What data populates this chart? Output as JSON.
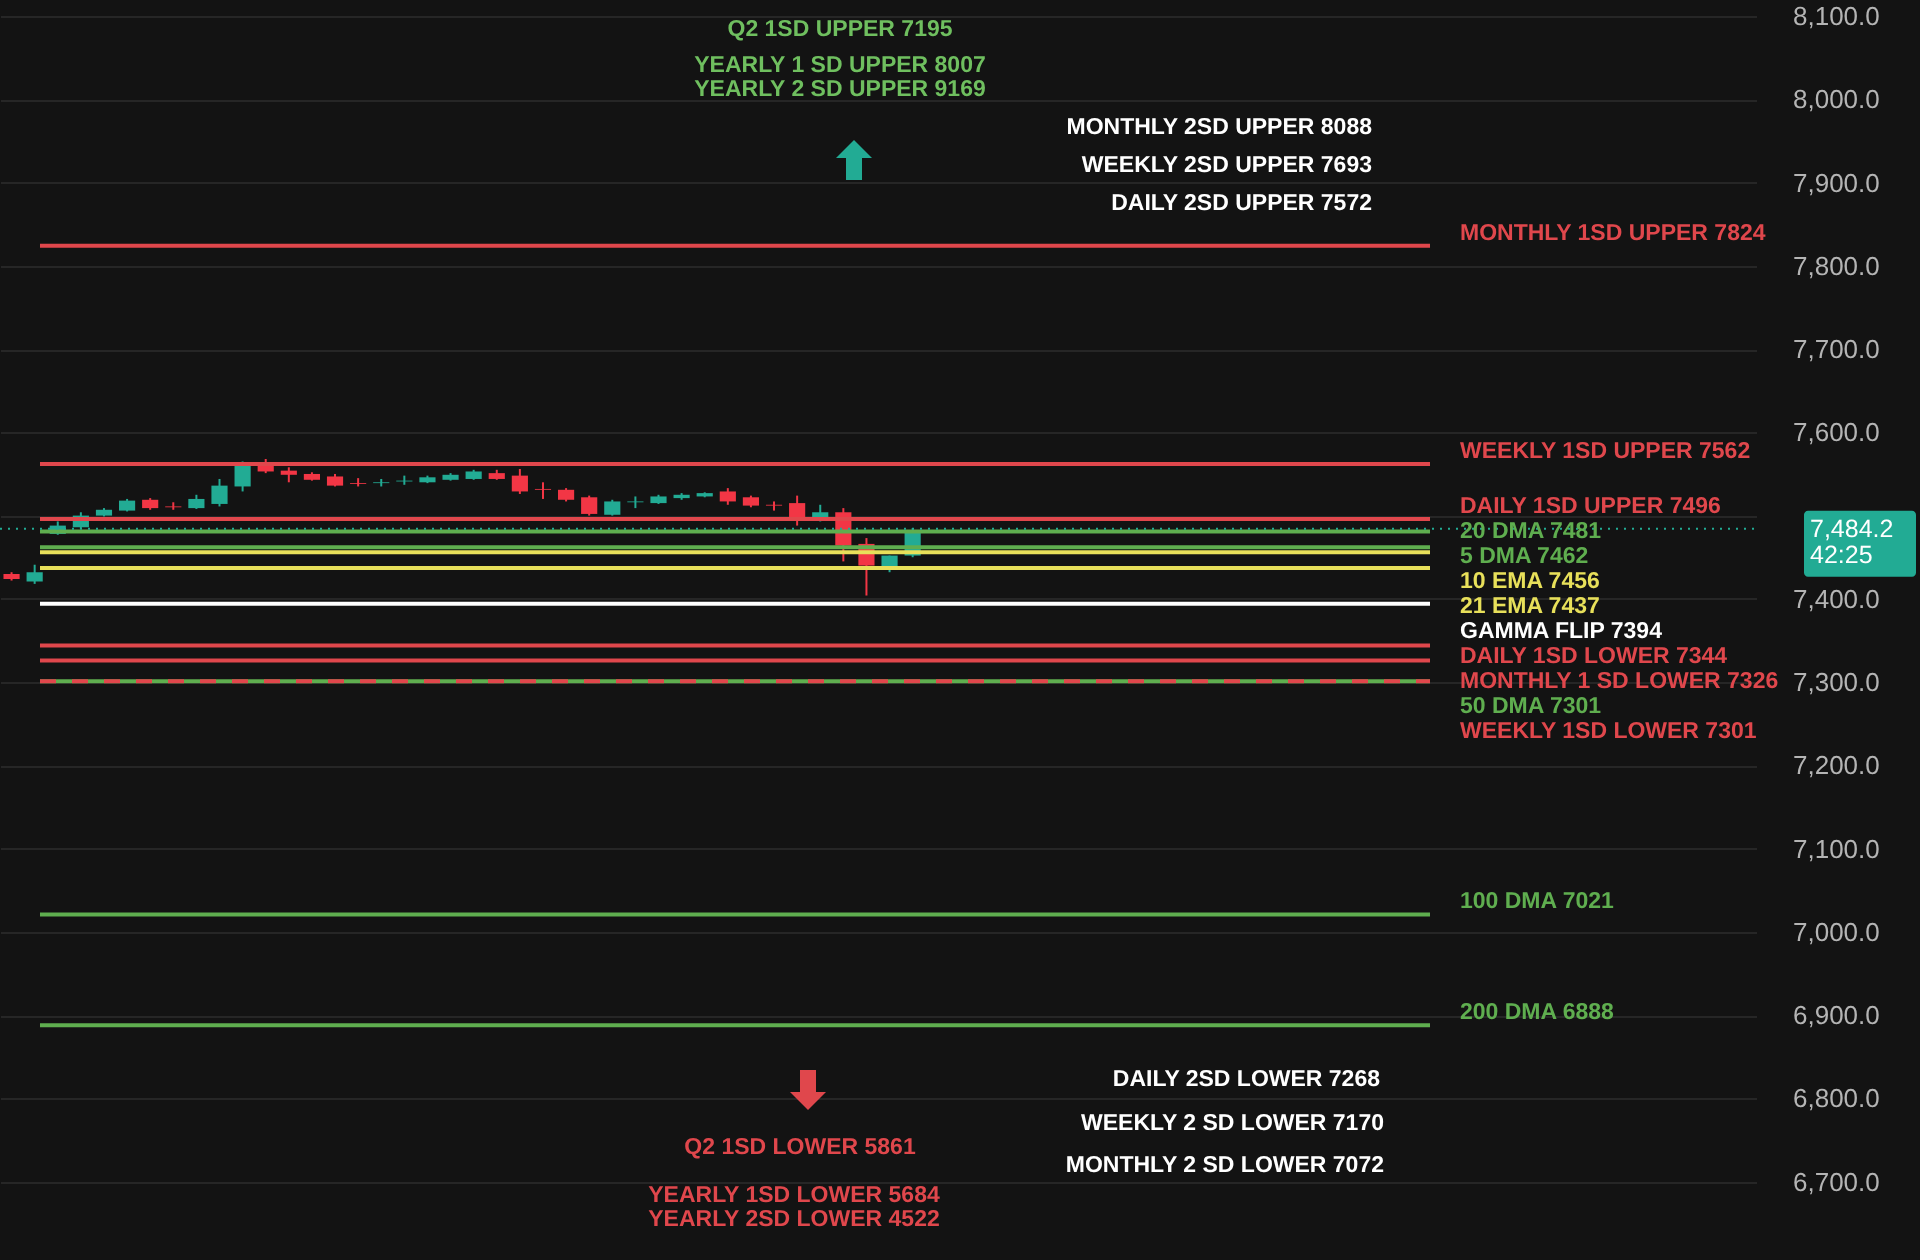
{
  "chart_data": {
    "type": "candlestick",
    "categories": [
      null,
      null,
      null,
      null,
      null,
      null,
      null,
      null,
      null,
      null,
      null,
      null,
      null,
      null,
      null,
      null,
      null,
      null,
      null,
      null,
      null,
      null,
      null,
      null,
      null,
      null,
      null,
      null,
      null,
      null,
      null,
      null,
      null,
      null,
      null,
      null,
      null,
      null,
      null,
      null,
      null,
      null,
      null,
      null,
      null,
      null,
      null,
      null,
      null,
      null,
      null,
      null,
      null,
      null,
      null,
      null,
      null,
      null,
      null,
      null,
      null,
      null,
      null,
      null,
      null,
      null,
      null,
      null,
      null,
      null,
      null,
      null,
      null,
      null,
      null,
      null
    ],
    "ohlc": [
      [
        7430,
        7432,
        7422,
        7424
      ],
      [
        7421,
        7441,
        7418,
        7432
      ],
      [
        7478,
        7493,
        7477,
        7488
      ],
      [
        7486,
        7504,
        7484,
        7500
      ],
      [
        7500,
        7509,
        7499,
        7507
      ],
      [
        7506,
        7520,
        7505,
        7518
      ],
      [
        7519,
        7521,
        7507,
        7509
      ],
      [
        7511,
        7516,
        7507,
        7510
      ],
      [
        7509,
        7525,
        7508,
        7520
      ],
      [
        7514,
        7544,
        7511,
        7536
      ],
      [
        7535,
        7565,
        7529,
        7561
      ],
      [
        7561,
        7568,
        7551,
        7553
      ],
      [
        7554,
        7558,
        7540,
        7549
      ],
      [
        7550,
        7552,
        7542,
        7543
      ],
      [
        7547,
        7550,
        7535,
        7536
      ],
      [
        7539,
        7545,
        7535,
        7538
      ],
      [
        7539,
        7544,
        7535,
        7540
      ],
      [
        7541,
        7548,
        7537,
        7542
      ],
      [
        7540,
        7548,
        7539,
        7546
      ],
      [
        7543,
        7551,
        7542,
        7549
      ],
      [
        7544,
        7555,
        7543,
        7553
      ],
      [
        7551,
        7555,
        7543,
        7544
      ],
      [
        7548,
        7556,
        7526,
        7529
      ],
      [
        7532,
        7540,
        7520,
        7531
      ],
      [
        7531,
        7533,
        7517,
        7519
      ],
      [
        7522,
        7524,
        7500,
        7502
      ],
      [
        7501,
        7519,
        7500,
        7517
      ],
      [
        7516,
        7523,
        7509,
        7517
      ],
      [
        7515,
        7525,
        7514,
        7523
      ],
      [
        7521,
        7527,
        7519,
        7525
      ],
      [
        7523,
        7528,
        7522,
        7527
      ],
      [
        7529,
        7533,
        7513,
        7517
      ],
      [
        7522,
        7524,
        7510,
        7512
      ],
      [
        7513,
        7517,
        7506,
        7512
      ],
      [
        7515,
        7524,
        7488,
        7494
      ],
      [
        7495,
        7513,
        7493,
        7504
      ],
      [
        7504,
        7509,
        7445,
        7464
      ],
      [
        7466,
        7473,
        7404,
        7440
      ],
      [
        7438,
        7452,
        7432,
        7452
      ],
      [
        7452,
        7485,
        7450,
        7481
      ],
      null,
      null,
      null,
      null,
      null,
      null,
      null,
      null,
      null,
      null,
      null,
      null,
      null,
      null,
      null,
      null,
      null,
      null,
      null,
      null,
      null,
      null,
      null,
      null,
      null,
      null,
      null,
      null,
      null,
      null,
      null,
      null,
      null,
      null,
      null,
      null
    ],
    "colors": [
      "#f23645",
      "#22ab94",
      "#22ab94",
      "#22ab94",
      "#22ab94",
      "#22ab94",
      "#f23645",
      "#f23645",
      "#22ab94",
      "#22ab94",
      "#22ab94",
      "#f23645",
      "#f23645",
      "#f23645",
      "#f23645",
      "#f23645",
      "#22ab94",
      "#22ab94",
      "#22ab94",
      "#22ab94",
      "#22ab94",
      "#f23645",
      "#f23645",
      "#f23645",
      "#f23645",
      "#f23645",
      "#22ab94",
      "#22ab94",
      "#22ab94",
      "#22ab94",
      "#22ab94",
      "#f23645",
      "#f23645",
      "#f23645",
      "#f23645",
      "#22ab94",
      "#f23645",
      "#f23645",
      "#22ab94",
      "#22ab94",
      null,
      null,
      null,
      null,
      null,
      null,
      null,
      null,
      null,
      null,
      null,
      null,
      null,
      null,
      null,
      null,
      null,
      null,
      null,
      null,
      null,
      null,
      null,
      null,
      null,
      null,
      null,
      null,
      null,
      null,
      null,
      null,
      null,
      null,
      null,
      null
    ],
    "ylim": [
      6606,
      8100
    ],
    "yticks": [
      {
        "value": 6700,
        "label": "6,700.0"
      },
      {
        "value": 6800,
        "label": "6,800.0"
      },
      {
        "value": 6900,
        "label": "6,900.0"
      },
      {
        "value": 7000,
        "label": "7,000.0"
      },
      {
        "value": 7100,
        "label": "7,100.0"
      },
      {
        "value": 7200,
        "label": "7,200.0"
      },
      {
        "value": 7300,
        "label": "7,300.0"
      },
      {
        "value": 7400,
        "label": "7,400.0"
      },
      {
        "value": 7500,
        "label": null
      },
      {
        "value": 7600,
        "label": "7,600.0"
      },
      {
        "value": 7700,
        "label": "7,700.0"
      },
      {
        "value": 7800,
        "label": "7,800.0"
      },
      {
        "value": 7900,
        "label": "7,900.0"
      },
      {
        "value": 8000,
        "label": "8,000.0"
      },
      {
        "value": 8100,
        "label": "8,100.0"
      }
    ],
    "tick_labels": "y",
    "grid": "y",
    "ref_lines": [
      {
        "axis": "y",
        "value": 7824,
        "label": "MONTHLY 1SD UPPER 7824",
        "color": "#e0474c"
      },
      {
        "axis": "y",
        "value": 7562,
        "label": "WEEKLY 1SD UPPER 7562",
        "color": "#e0474c"
      },
      {
        "axis": "y",
        "value": 7496,
        "label": "DAILY 1SD UPPER 7496",
        "color": "#e0474c"
      },
      {
        "axis": "y",
        "value": 7481,
        "label": "20 DMA 7481",
        "color": "#5fae4f"
      },
      {
        "axis": "y",
        "value": 7462,
        "label": "5 DMA 7462",
        "color": "#5fae4f"
      },
      {
        "axis": "y",
        "value": 7456,
        "label": "10 EMA 7456",
        "color": "#e8e05a"
      },
      {
        "axis": "y",
        "value": 7437,
        "label": "21 EMA 7437",
        "color": "#e8e05a"
      },
      {
        "axis": "y",
        "value": 7394,
        "label": "GAMMA FLIP 7394",
        "color": "#ffffff"
      },
      {
        "axis": "y",
        "value": 7344,
        "label": "DAILY 1SD LOWER 7344",
        "color": "#e0474c"
      },
      {
        "axis": "y",
        "value": 7326,
        "label": "MONTHLY 1 SD LOWER 7326",
        "color": "#e0474c"
      },
      {
        "axis": "y",
        "value": 7301,
        "label": "50 DMA 7301",
        "color": "#5fae4f"
      },
      {
        "axis": "y",
        "value": 7301,
        "label": "WEEKLY 1SD LOWER 7301",
        "color": "#e0474c"
      },
      {
        "axis": "y",
        "value": 7021,
        "label": "100 DMA 7021",
        "color": "#5fae4f"
      },
      {
        "axis": "y",
        "value": 6888,
        "label": "200 DMA 6888",
        "color": "#5fae4f"
      },
      {
        "axis": "y",
        "value": 7484.2,
        "label": "7,484.2",
        "color": "#22ab94",
        "line_style": "dotted"
      }
    ],
    "annotations": [
      "Q2 1SD UPPER  7195",
      "YEARLY 1 SD UPPER 8007",
      "YEARLY 2 SD UPPER 9169",
      "MONTHLY 2SD UPPER 8088",
      "WEEKLY 2SD UPPER 7693",
      "DAILY 2SD UPPER 7572",
      "DAILY 2SD LOWER 7268",
      "WEEKLY 2 SD LOWER 7170",
      "MONTHLY 2 SD LOWER 7072",
      "Q2 1SD LOWER 5861",
      "YEARLY 1SD LOWER 5684",
      "YEARLY 2SD LOWER 4522",
      "42:25"
    ]
  }
}
